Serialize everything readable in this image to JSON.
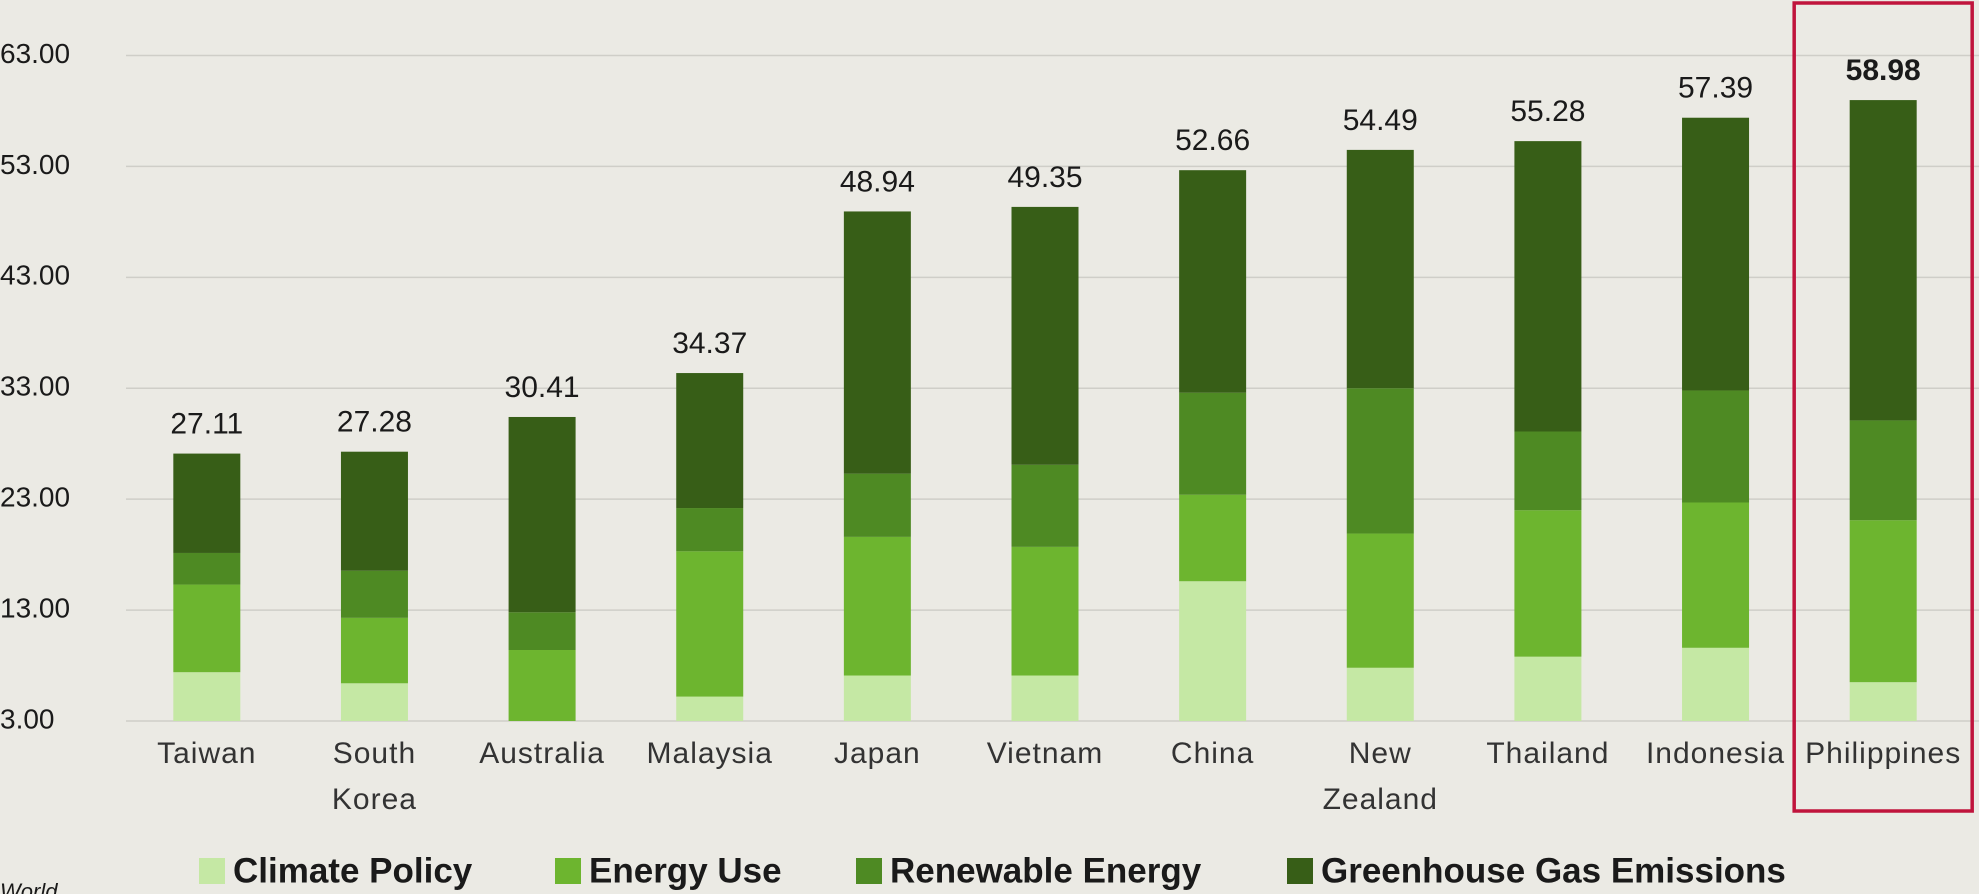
{
  "chart_data": {
    "type": "stacked_bar",
    "categories": [
      "Taiwan",
      "South Korea",
      "Australia",
      "Malaysia",
      "Japan",
      "Vietnam",
      "China",
      "New Zealand",
      "Thailand",
      "Indonesia",
      "Philippines"
    ],
    "series": [
      {
        "name": "Climate Policy",
        "color": "#c5e8a4",
        "values": [
          7.4,
          6.4,
          2.0,
          5.2,
          7.1,
          7.1,
          15.6,
          7.8,
          8.8,
          9.6,
          6.5
        ]
      },
      {
        "name": "Energy Use",
        "color": "#6db52f",
        "values": [
          7.9,
          5.9,
          7.4,
          13.1,
          12.5,
          11.6,
          7.8,
          12.1,
          13.2,
          13.1,
          14.6
        ]
      },
      {
        "name": "Renewable Energy",
        "color": "#4e8a23",
        "values": [
          2.85,
          4.25,
          3.4,
          3.9,
          5.7,
          7.4,
          9.2,
          13.1,
          7.1,
          10.1,
          9.0
        ]
      },
      {
        "name": "Greenhouse Gas Emissions",
        "color": "#375e17",
        "values": [
          8.96,
          10.73,
          17.61,
          12.17,
          23.64,
          23.25,
          20.06,
          21.49,
          26.18,
          24.59,
          28.88
        ]
      }
    ],
    "totals": [
      27.11,
      27.28,
      30.41,
      34.37,
      48.94,
      49.35,
      52.66,
      54.49,
      55.28,
      57.39,
      58.98
    ],
    "ylim": [
      3,
      68
    ],
    "yticks": [
      {
        "value": 3,
        "label": "3.00"
      },
      {
        "value": 13,
        "label": "13.00"
      },
      {
        "value": 23,
        "label": "23.00"
      },
      {
        "value": 33,
        "label": "33.00"
      },
      {
        "value": 43,
        "label": "43.00"
      },
      {
        "value": 53,
        "label": "53.00"
      },
      {
        "value": 63,
        "label": "63.00"
      }
    ],
    "grid": true,
    "highlight_index": 10,
    "highlight_color": "#c0143c",
    "legend": "bottom",
    "source": "World"
  }
}
